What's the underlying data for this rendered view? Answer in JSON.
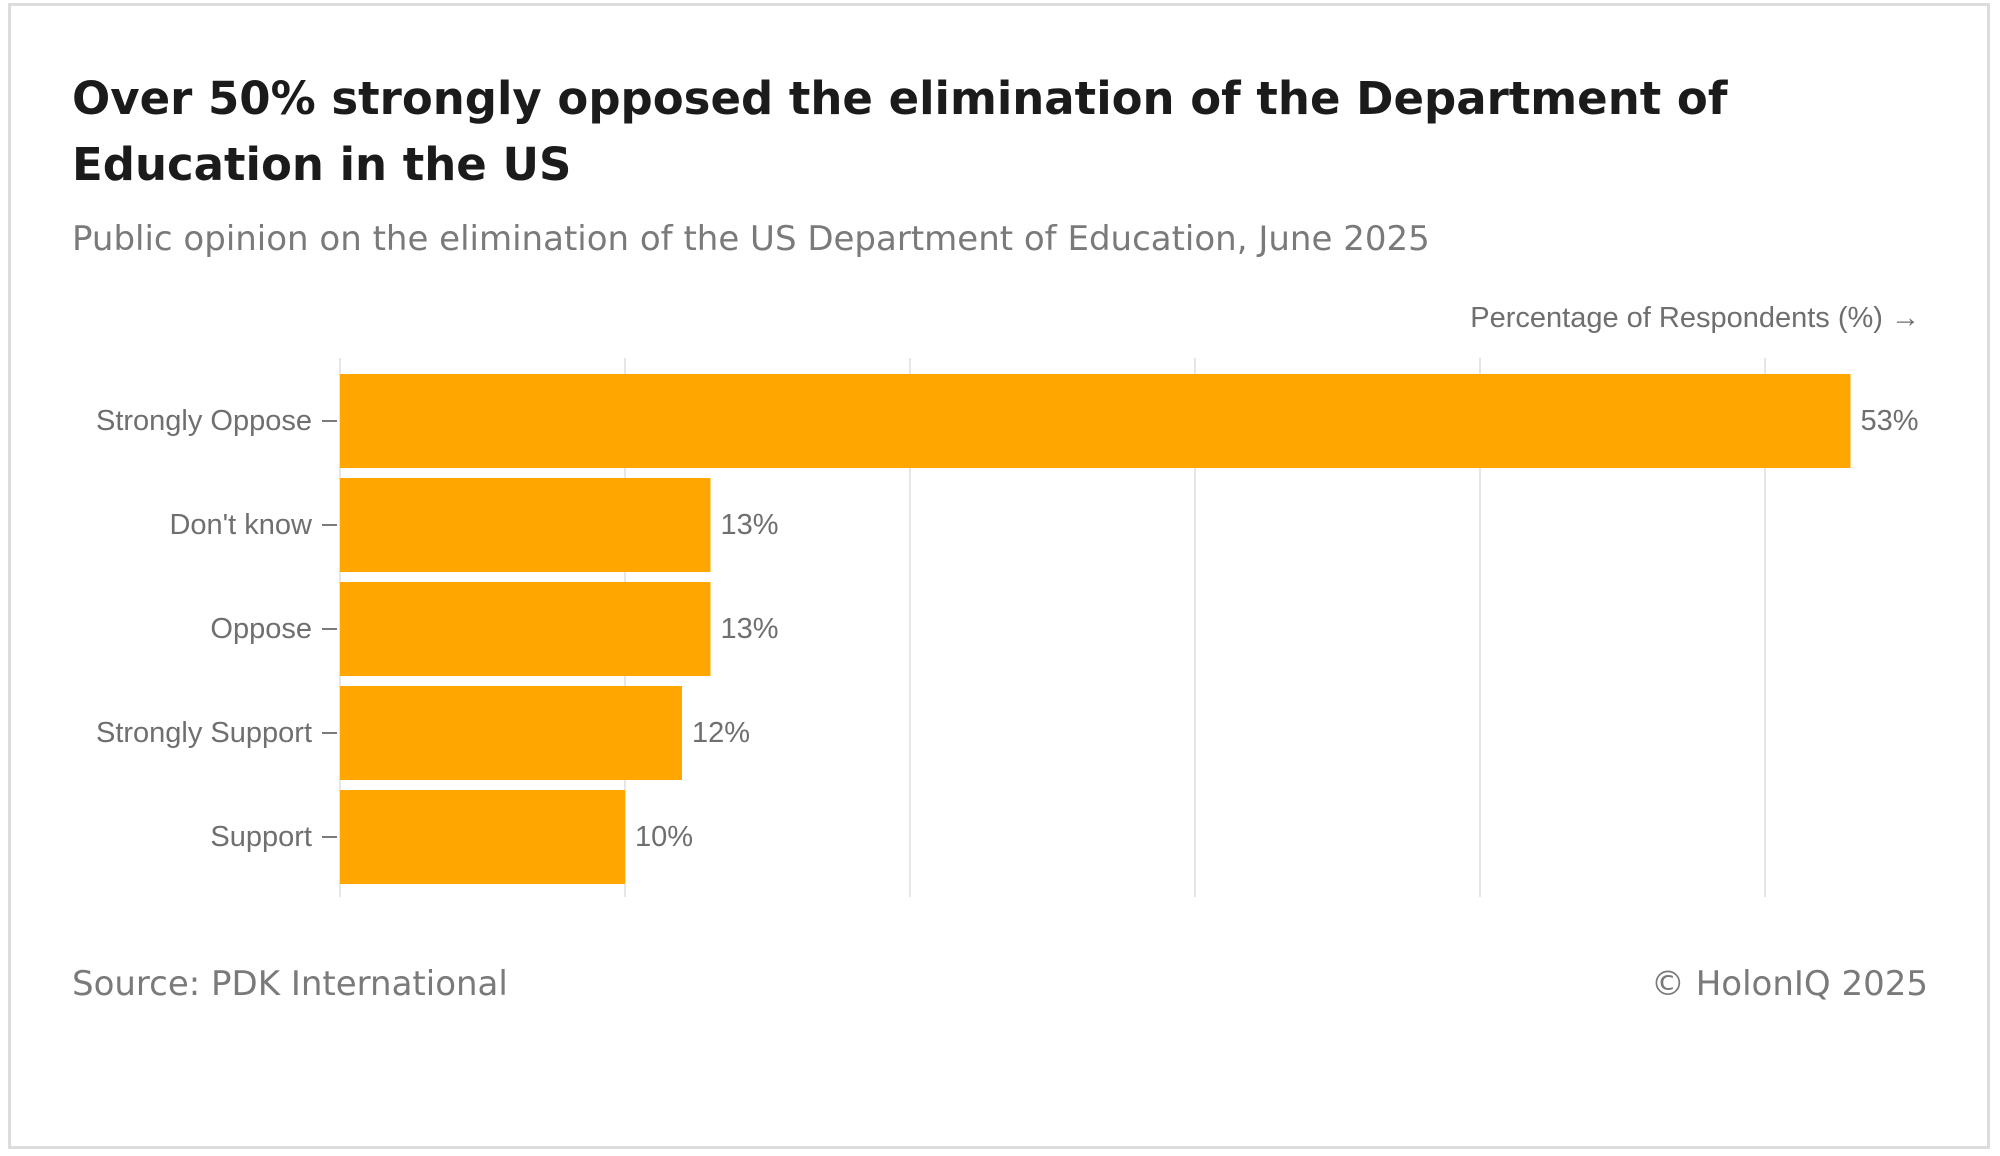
{
  "title": "Over 50% strongly opposed the elimination of the Department of Education in the US",
  "subtitle": "Public opinion on the elimination of the US Department of Education, June 2025",
  "source": "Source: PDK International",
  "copyright": "© HolonIQ 2025",
  "colors": {
    "bar": "#FFA600",
    "grid": "#e6e6e6",
    "axis_text": "#6f6f6f"
  },
  "chart_data": {
    "type": "bar",
    "orientation": "horizontal",
    "title": "Over 50% strongly opposed the elimination of the Department of Education in the US",
    "subtitle": "Public opinion on the elimination of the US Department of Education, June 2025",
    "xlabel": "Percentage of Respondents (%) →",
    "ylabel": "",
    "categories": [
      "Strongly Oppose",
      "Don't know",
      "Oppose",
      "Strongly Support",
      "Support"
    ],
    "values": [
      53,
      13,
      13,
      12,
      10
    ],
    "data_labels": [
      "53%",
      "13%",
      "13%",
      "12%",
      "10%"
    ],
    "xlim": [
      0,
      55
    ],
    "grid": true,
    "legend": "none"
  }
}
